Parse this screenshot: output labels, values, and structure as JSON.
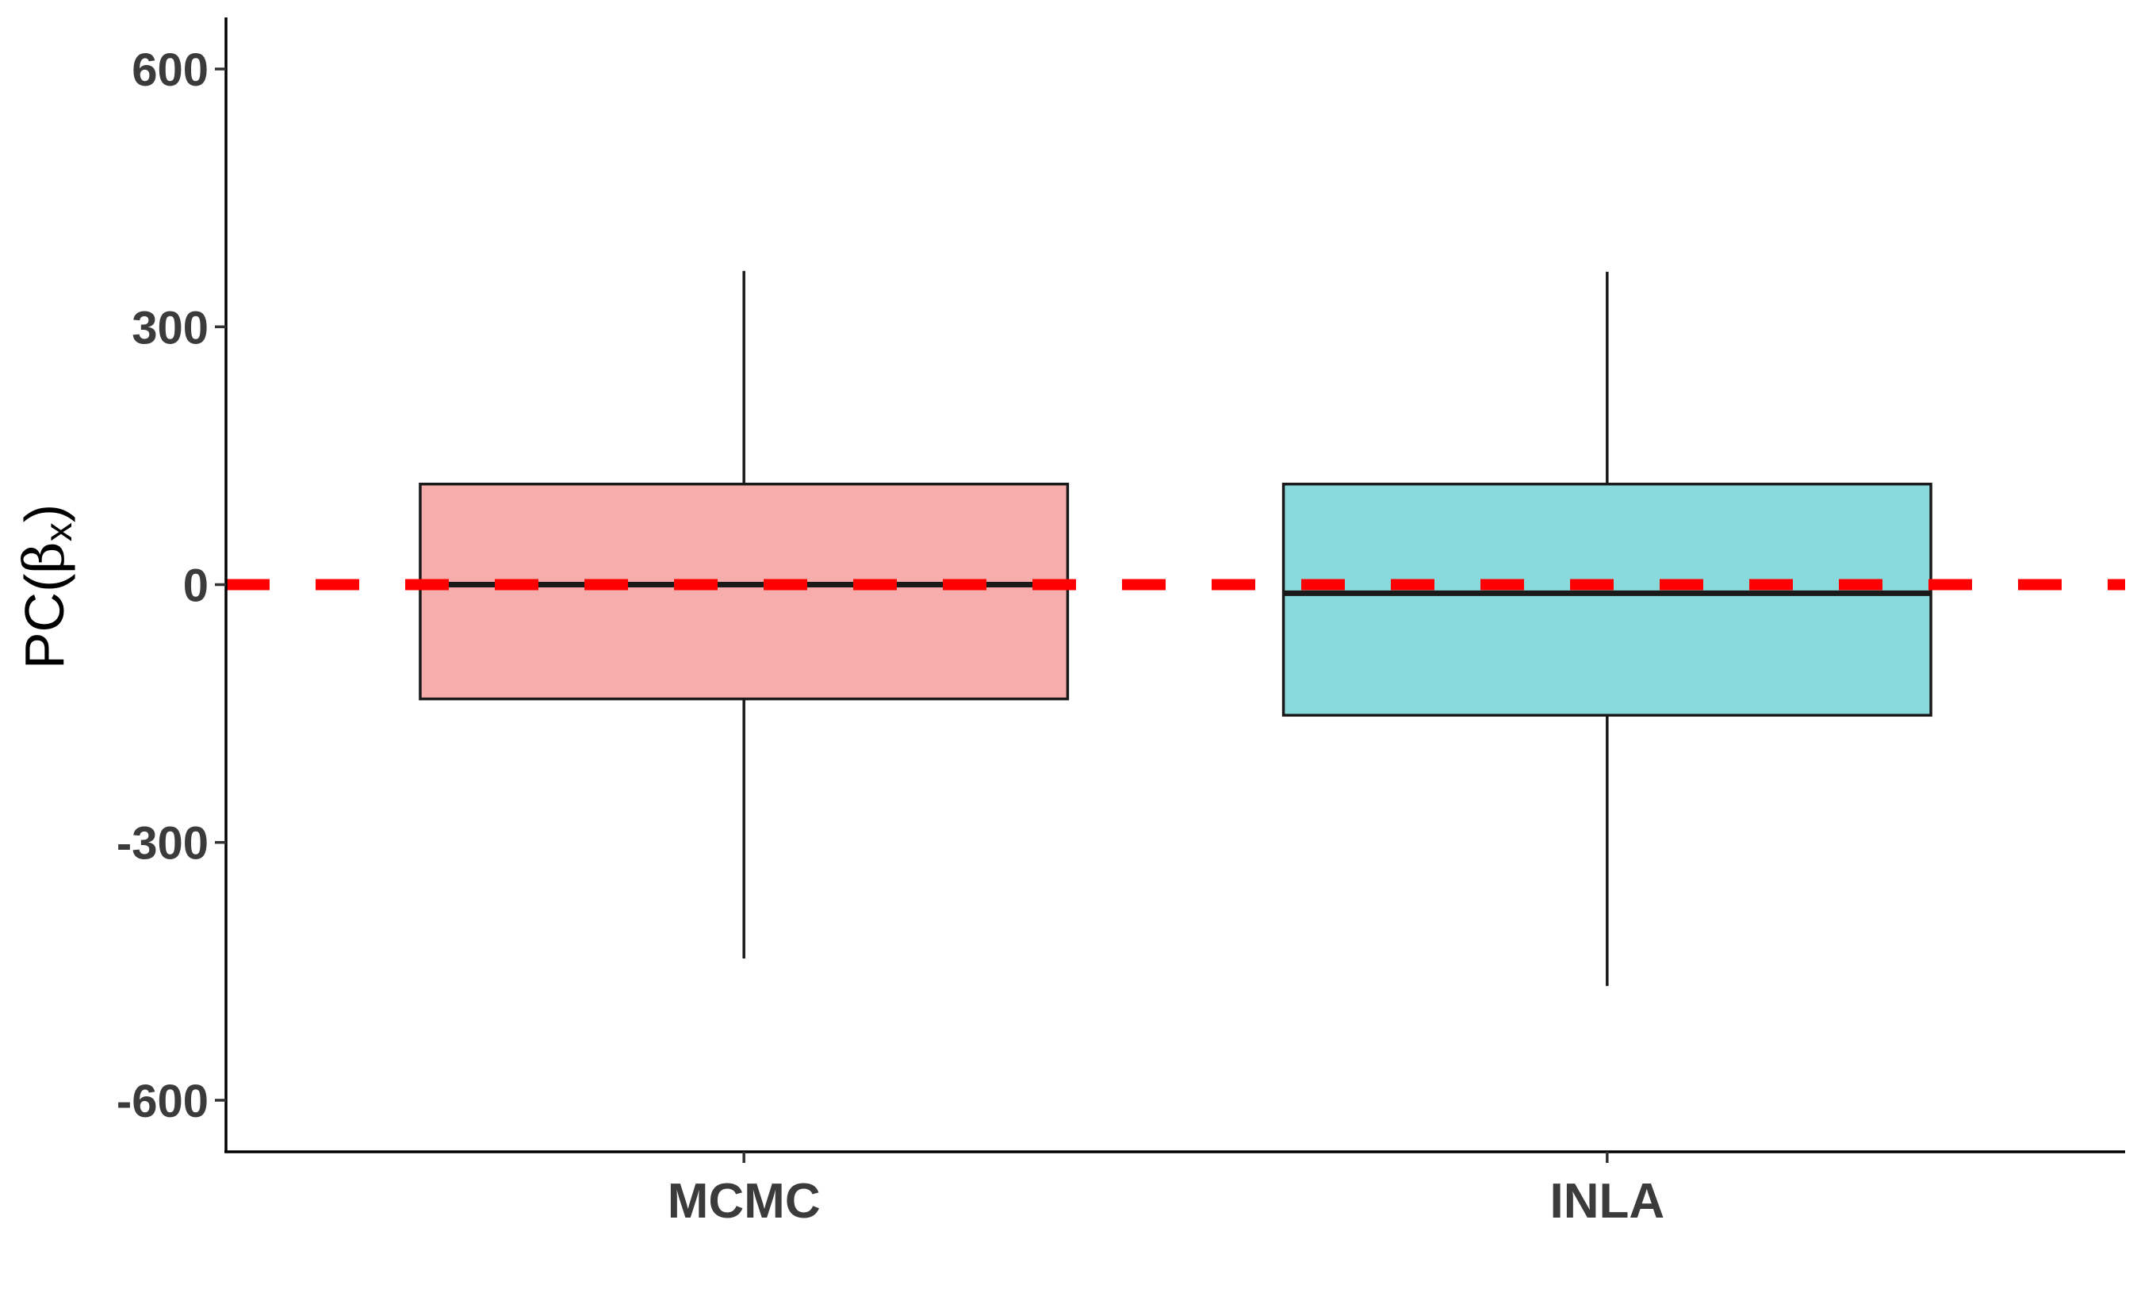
{
  "chart_data": {
    "type": "boxplot",
    "title": "",
    "xlabel": "",
    "ylabel": {
      "main": "PC(",
      "greek": "β",
      "subscript": "x",
      "close": ")"
    },
    "ylim": [
      -660,
      660
    ],
    "yticks": [
      600,
      300,
      0,
      -300,
      -600
    ],
    "ytick_labels": [
      "600",
      "300",
      "0",
      "-300",
      "-600"
    ],
    "categories": [
      "MCMC",
      "INLA"
    ],
    "boxes": [
      {
        "name": "MCMC",
        "whisker_low": -435,
        "q1": -133,
        "median": 0,
        "q3": 117,
        "whisker_high": 365,
        "fill": "#f8adad"
      },
      {
        "name": "INLA",
        "whisker_low": -467,
        "q1": -152,
        "median": -10,
        "q3": 117,
        "whisker_high": 364,
        "fill": "#8adadb"
      }
    ],
    "reference_line": {
      "y": 0,
      "color": "#ff0000",
      "style": "dashed"
    },
    "grid": false,
    "legend": "none",
    "box_edge_color": "#1a1a1a"
  }
}
